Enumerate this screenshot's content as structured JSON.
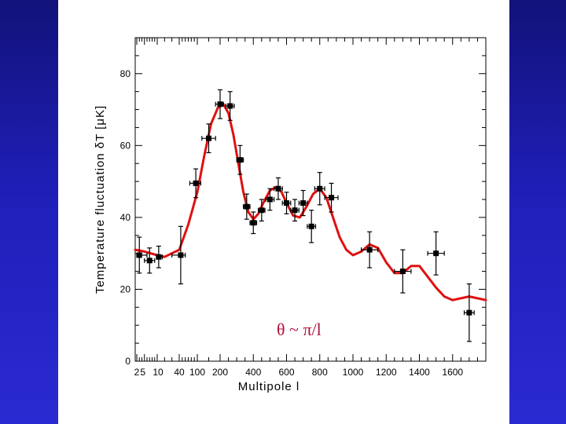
{
  "colors": {
    "background_blue": "#1a1aa8",
    "curve": "#e01010",
    "annotation": "#b0123a"
  },
  "chart_data": {
    "type": "scatter",
    "title": "",
    "xlabel": "Multipole l",
    "ylabel": "Temperature fluctuation δT  [μK]",
    "annotation": "θ ~ π/l",
    "xscale": "sqrt-like (compressed at low l)",
    "xlim": [
      0,
      1800
    ],
    "ylim": [
      0,
      90
    ],
    "grid": false,
    "x_ticks": [
      {
        "value": 2,
        "label": "2"
      },
      {
        "value": 5,
        "label": "5"
      },
      {
        "value": 10,
        "label": "10"
      },
      {
        "value": 40,
        "label": "40"
      },
      {
        "value": 100,
        "label": "100"
      },
      {
        "value": 200,
        "label": "200"
      },
      {
        "value": 400,
        "label": "400"
      },
      {
        "value": 600,
        "label": "600"
      },
      {
        "value": 800,
        "label": "800"
      },
      {
        "value": 1000,
        "label": "1000"
      },
      {
        "value": 1200,
        "label": "1200"
      },
      {
        "value": 1400,
        "label": "1400"
      },
      {
        "value": 1600,
        "label": "1600"
      }
    ],
    "y_ticks": [
      {
        "value": 0,
        "label": "0"
      },
      {
        "value": 20,
        "label": "20"
      },
      {
        "value": 40,
        "label": "40"
      },
      {
        "value": 60,
        "label": "60"
      },
      {
        "value": 80,
        "label": "80"
      }
    ],
    "data_points": [
      {
        "l": 3,
        "y": 29.5,
        "err": 5,
        "xerr_lo": 1,
        "xerr_hi": 3
      },
      {
        "l": 7,
        "y": 28,
        "err": 3.5,
        "xerr_lo": 2,
        "xerr_hi": 2
      },
      {
        "l": 12,
        "y": 29,
        "err": 3,
        "xerr_lo": 2,
        "xerr_hi": 5
      },
      {
        "l": 45,
        "y": 29.5,
        "err": 8,
        "xerr_lo": 15,
        "xerr_hi": 15
      },
      {
        "l": 95,
        "y": 49.5,
        "err": 4,
        "xerr_lo": 20,
        "xerr_hi": 20
      },
      {
        "l": 150,
        "y": 62,
        "err": 4,
        "xerr_lo": 30,
        "xerr_hi": 30
      },
      {
        "l": 200,
        "y": 71.5,
        "err": 4,
        "xerr_lo": 20,
        "xerr_hi": 20
      },
      {
        "l": 260,
        "y": 71,
        "err": 4,
        "xerr_lo": 25,
        "xerr_hi": 25
      },
      {
        "l": 320,
        "y": 56,
        "err": 4,
        "xerr_lo": 20,
        "xerr_hi": 20
      },
      {
        "l": 360,
        "y": 43,
        "err": 3.5,
        "xerr_lo": 20,
        "xerr_hi": 20
      },
      {
        "l": 400,
        "y": 38.5,
        "err": 3,
        "xerr_lo": 20,
        "xerr_hi": 20
      },
      {
        "l": 450,
        "y": 42,
        "err": 3,
        "xerr_lo": 20,
        "xerr_hi": 20
      },
      {
        "l": 500,
        "y": 45,
        "err": 3,
        "xerr_lo": 25,
        "xerr_hi": 25
      },
      {
        "l": 550,
        "y": 48,
        "err": 3,
        "xerr_lo": 25,
        "xerr_hi": 25
      },
      {
        "l": 600,
        "y": 44,
        "err": 3,
        "xerr_lo": 25,
        "xerr_hi": 25
      },
      {
        "l": 650,
        "y": 42,
        "err": 3,
        "xerr_lo": 25,
        "xerr_hi": 25
      },
      {
        "l": 700,
        "y": 44,
        "err": 3.5,
        "xerr_lo": 25,
        "xerr_hi": 25
      },
      {
        "l": 750,
        "y": 37.5,
        "err": 4.5,
        "xerr_lo": 25,
        "xerr_hi": 25
      },
      {
        "l": 800,
        "y": 48,
        "err": 4.5,
        "xerr_lo": 30,
        "xerr_hi": 30
      },
      {
        "l": 870,
        "y": 45.5,
        "err": 4,
        "xerr_lo": 40,
        "xerr_hi": 40
      },
      {
        "l": 1100,
        "y": 31,
        "err": 5,
        "xerr_lo": 50,
        "xerr_hi": 50
      },
      {
        "l": 1300,
        "y": 25,
        "err": 6,
        "xerr_lo": 50,
        "xerr_hi": 50
      },
      {
        "l": 1500,
        "y": 30,
        "err": 6,
        "xerr_lo": 50,
        "xerr_hi": 50
      },
      {
        "l": 1700,
        "y": 13.5,
        "err": 8,
        "xerr_lo": 30,
        "xerr_hi": 30
      }
    ],
    "model_curve": {
      "name": "model",
      "l": [
        0,
        5,
        10,
        20,
        40,
        70,
        100,
        130,
        160,
        190,
        220,
        250,
        280,
        310,
        340,
        370,
        400,
        430,
        460,
        500,
        540,
        570,
        600,
        640,
        680,
        720,
        760,
        800,
        840,
        880,
        920,
        960,
        1000,
        1050,
        1100,
        1150,
        1200,
        1250,
        1300,
        1350,
        1400,
        1450,
        1500,
        1550,
        1600,
        1650,
        1700,
        1750,
        1800
      ],
      "y": [
        31,
        30.5,
        29.5,
        29,
        31,
        38,
        47,
        57,
        66,
        70.5,
        71.5,
        69,
        63,
        55,
        47,
        41.5,
        39.5,
        41,
        44,
        47.5,
        48.5,
        47,
        44,
        40.5,
        40,
        43,
        46.5,
        48,
        45.5,
        40,
        34.5,
        31,
        29.5,
        30.5,
        32.5,
        31.5,
        27.5,
        24.5,
        24.5,
        26.5,
        26.5,
        23.5,
        20.5,
        18,
        17,
        17.5,
        18,
        17.5,
        17
      ]
    }
  }
}
